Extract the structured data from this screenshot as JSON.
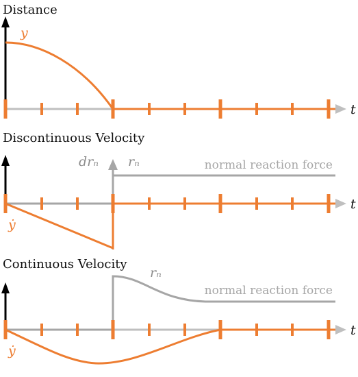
{
  "colors": {
    "orange": "#ED7D31",
    "gray": "#A6A6A6",
    "black": "#000000"
  },
  "panels": [
    {
      "title": "Distance",
      "curve_label": "y",
      "time_label": "t"
    },
    {
      "title": "Discontinuous Velocity",
      "curve_label": "ẏ",
      "impulse_label": "drₙ",
      "force_label": "rₙ",
      "force_note": "normal reaction force",
      "time_label": "t"
    },
    {
      "title": "Continuous Velocity",
      "curve_label": "ẏ",
      "force_label": "rₙ",
      "force_note": "normal reaction force",
      "time_label": "t"
    }
  ]
}
